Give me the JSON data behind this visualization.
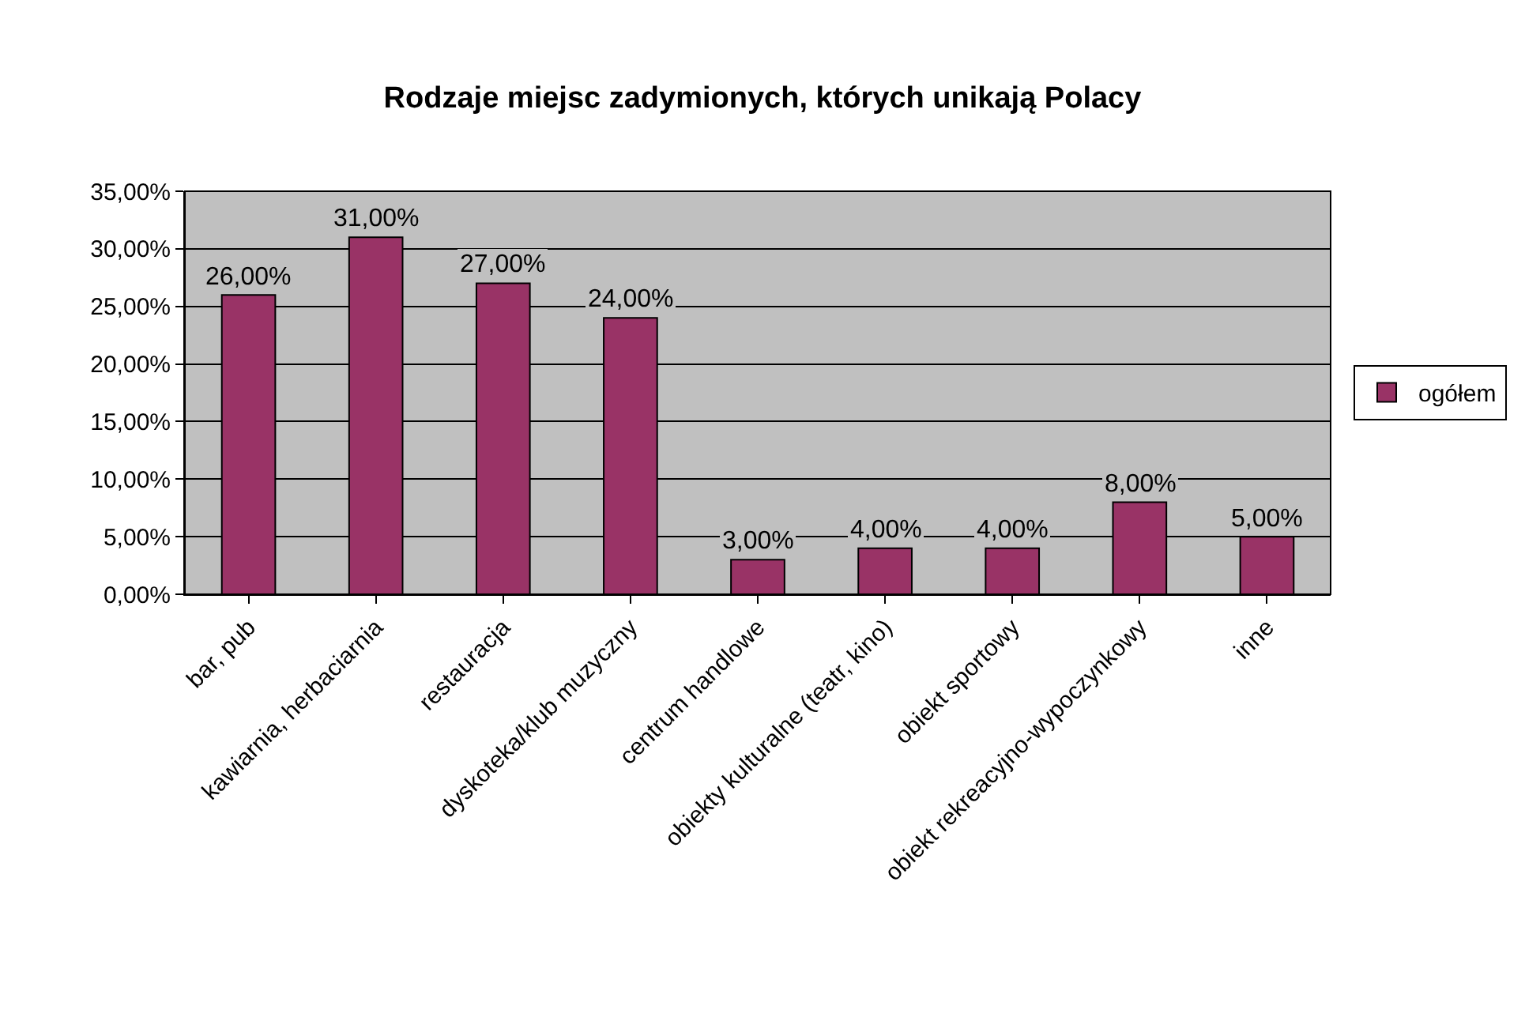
{
  "chart_data": {
    "type": "bar",
    "title": "Rodzaje miejsc zadymionych, których unikają Polacy",
    "categories": [
      "bar, pub",
      "kawiarnia, herbaciarnia",
      "restauracja",
      "dyskoteka/klub muzyczny",
      "centrum handlowe",
      "obiekty kulturalne (teatr, kino)",
      "obiekt sportowy",
      "obiekt rekreacyjno-wypoczynkowy",
      "inne"
    ],
    "series": [
      {
        "name": "ogółem",
        "color": "#993366",
        "values": [
          26,
          31,
          27,
          24,
          3,
          4,
          4,
          8,
          5
        ],
        "value_labels": [
          "26,00%",
          "31,00%",
          "27,00%",
          "24,00%",
          "3,00%",
          "4,00%",
          "4,00%",
          "8,00%",
          "5,00%"
        ]
      }
    ],
    "ylim": [
      0,
      35
    ],
    "yticks": [
      {
        "value": 0,
        "label": "0,00%"
      },
      {
        "value": 5,
        "label": "5,00%"
      },
      {
        "value": 10,
        "label": "10,00%"
      },
      {
        "value": 15,
        "label": "15,00%"
      },
      {
        "value": 20,
        "label": "20,00%"
      },
      {
        "value": 25,
        "label": "25,00%"
      },
      {
        "value": 30,
        "label": "30,00%"
      },
      {
        "value": 35,
        "label": "35,00%"
      }
    ],
    "grid": "y",
    "legend": "right"
  }
}
